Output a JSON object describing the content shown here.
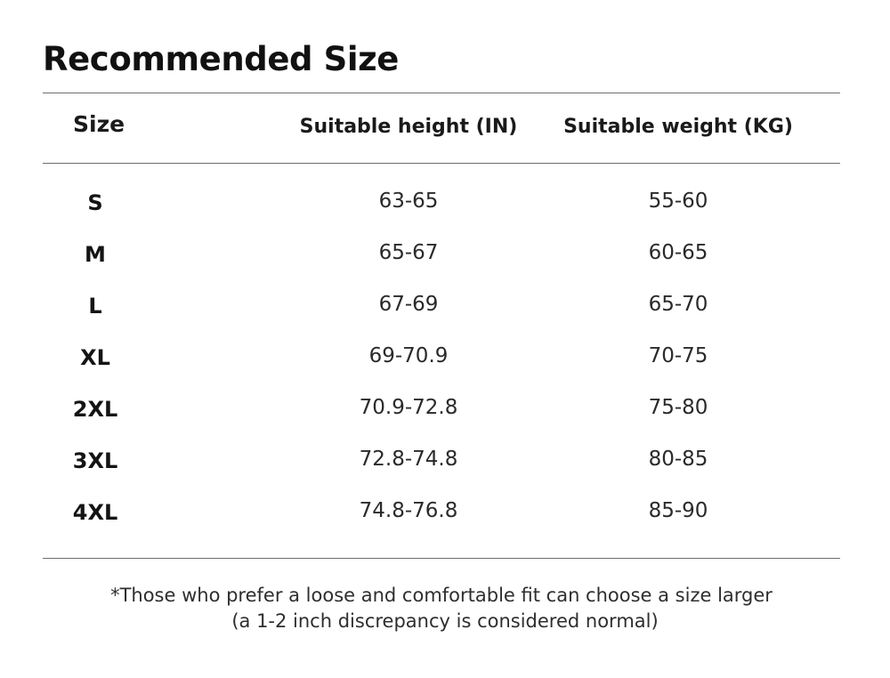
{
  "title": "Recommended Size",
  "headers": {
    "size": "Size",
    "height": "Suitable height (IN)",
    "weight": "Suitable weight (KG)"
  },
  "rows": [
    {
      "size": "S",
      "height": "63-65",
      "weight": "55-60"
    },
    {
      "size": "M",
      "height": "65-67",
      "weight": "60-65"
    },
    {
      "size": "L",
      "height": "67-69",
      "weight": "65-70"
    },
    {
      "size": "XL",
      "height": "69-70.9",
      "weight": "70-75"
    },
    {
      "size": "2XL",
      "height": "70.9-72.8",
      "weight": "75-80"
    },
    {
      "size": "3XL",
      "height": "72.8-74.8",
      "weight": "80-85"
    },
    {
      "size": "4XL",
      "height": "74.8-76.8",
      "weight": "85-90"
    }
  ],
  "note": {
    "line1": "*Those who prefer a loose and comfortable fit can choose a size larger",
    "line2": "(a 1-2 inch discrepancy is considered normal)"
  }
}
